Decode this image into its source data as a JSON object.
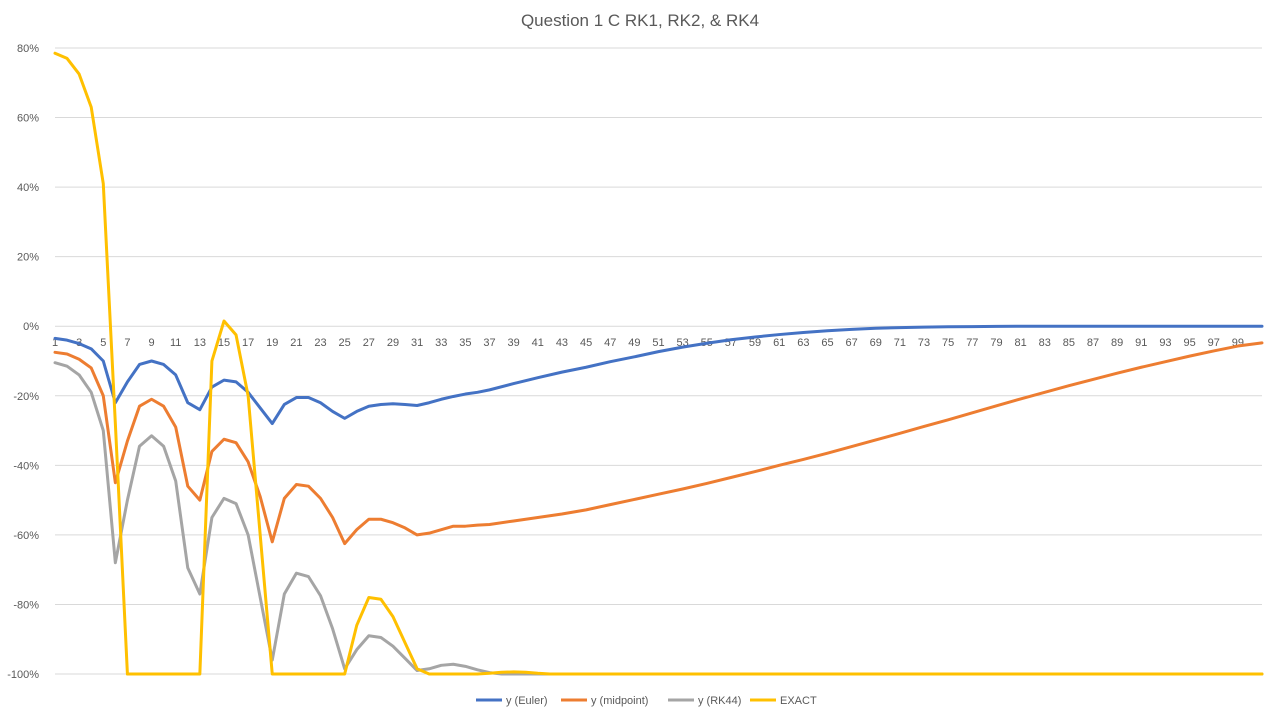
{
  "chart_data": {
    "type": "line",
    "title": "Question 1 C RK1, RK2, & RK4",
    "xlabel": "",
    "ylabel": "",
    "ylim": [
      -100,
      80
    ],
    "y_tick_labels": [
      "80%",
      "60%",
      "40%",
      "20%",
      "0%",
      "-20%",
      "-40%",
      "-60%",
      "-80%",
      "-100%"
    ],
    "x_tick_labels": [
      "1",
      "3",
      "5",
      "7",
      "9",
      "11",
      "13",
      "15",
      "17",
      "19",
      "21",
      "23",
      "25",
      "27",
      "29",
      "31",
      "33",
      "35",
      "37",
      "39",
      "41",
      "43",
      "45",
      "47",
      "49",
      "51",
      "53",
      "55",
      "57",
      "59",
      "61",
      "63",
      "65",
      "67",
      "69",
      "71",
      "73",
      "75",
      "77",
      "79",
      "81",
      "83",
      "85",
      "87",
      "89",
      "91",
      "93",
      "95",
      "97",
      "99"
    ],
    "x_count": 101,
    "grid": true,
    "legend_position": "bottom",
    "series": [
      {
        "name": "y (Euler)",
        "color": "#4472C4",
        "points": [
          [
            1,
            -3.5
          ],
          [
            2,
            -4
          ],
          [
            3,
            -5
          ],
          [
            4,
            -6.5
          ],
          [
            5,
            -10
          ],
          [
            6,
            -22
          ],
          [
            7,
            -16
          ],
          [
            8,
            -11
          ],
          [
            9,
            -10
          ],
          [
            10,
            -11
          ],
          [
            11,
            -14
          ],
          [
            12,
            -22
          ],
          [
            13,
            -24
          ],
          [
            14,
            -17.5
          ],
          [
            15,
            -15.5
          ],
          [
            16,
            -16
          ],
          [
            17,
            -19
          ],
          [
            18,
            -23.5
          ],
          [
            19,
            -28
          ],
          [
            20,
            -22.5
          ],
          [
            21,
            -20.5
          ],
          [
            22,
            -20.5
          ],
          [
            23,
            -22
          ],
          [
            24,
            -24.5
          ],
          [
            25,
            -26.5
          ],
          [
            26,
            -24.5
          ],
          [
            27,
            -23
          ],
          [
            28,
            -22.5
          ],
          [
            29,
            -22.3
          ],
          [
            30,
            -22.5
          ],
          [
            31,
            -22.8
          ],
          [
            32,
            -22
          ],
          [
            33,
            -21
          ],
          [
            34,
            -20.2
          ],
          [
            35,
            -19.5
          ],
          [
            36,
            -19
          ],
          [
            37,
            -18.3
          ],
          [
            39,
            -16.5
          ],
          [
            41,
            -14.8
          ],
          [
            43,
            -13.2
          ],
          [
            45,
            -11.8
          ],
          [
            47,
            -10.2
          ],
          [
            49,
            -8.8
          ],
          [
            51,
            -7.3
          ],
          [
            53,
            -6
          ],
          [
            55,
            -4.9
          ],
          [
            57,
            -3.9
          ],
          [
            59,
            -3.1
          ],
          [
            61,
            -2.4
          ],
          [
            63,
            -1.8
          ],
          [
            65,
            -1.3
          ],
          [
            67,
            -0.9
          ],
          [
            69,
            -0.6
          ],
          [
            71,
            -0.4
          ],
          [
            73,
            -0.25
          ],
          [
            75,
            -0.15
          ],
          [
            77,
            -0.1
          ],
          [
            79,
            -0.05
          ],
          [
            81,
            0
          ],
          [
            90,
            0
          ],
          [
            101,
            0
          ]
        ]
      },
      {
        "name": "y (midpoint)",
        "color": "#ED7D31",
        "points": [
          [
            1,
            -7.5
          ],
          [
            2,
            -8
          ],
          [
            3,
            -9.5
          ],
          [
            4,
            -12
          ],
          [
            5,
            -20
          ],
          [
            6,
            -45
          ],
          [
            7,
            -33
          ],
          [
            8,
            -23
          ],
          [
            9,
            -21
          ],
          [
            10,
            -23
          ],
          [
            11,
            -29
          ],
          [
            12,
            -46
          ],
          [
            13,
            -50
          ],
          [
            14,
            -36
          ],
          [
            15,
            -32.5
          ],
          [
            16,
            -33.5
          ],
          [
            17,
            -39
          ],
          [
            18,
            -49
          ],
          [
            19,
            -62
          ],
          [
            20,
            -49.5
          ],
          [
            21,
            -45.5
          ],
          [
            22,
            -46
          ],
          [
            23,
            -49.5
          ],
          [
            24,
            -55
          ],
          [
            25,
            -62.5
          ],
          [
            26,
            -58.5
          ],
          [
            27,
            -55.5
          ],
          [
            28,
            -55.5
          ],
          [
            29,
            -56.5
          ],
          [
            30,
            -58
          ],
          [
            31,
            -60
          ],
          [
            32,
            -59.5
          ],
          [
            33,
            -58.5
          ],
          [
            34,
            -57.5
          ],
          [
            35,
            -57.5
          ],
          [
            36,
            -57.2
          ],
          [
            37,
            -57
          ],
          [
            39,
            -56
          ],
          [
            41,
            -55
          ],
          [
            43,
            -54
          ],
          [
            45,
            -52.8
          ],
          [
            47,
            -51.3
          ],
          [
            49,
            -49.8
          ],
          [
            51,
            -48.3
          ],
          [
            53,
            -46.8
          ],
          [
            55,
            -45.2
          ],
          [
            57,
            -43.5
          ],
          [
            59,
            -41.8
          ],
          [
            61,
            -40
          ],
          [
            63,
            -38.3
          ],
          [
            65,
            -36.5
          ],
          [
            67,
            -34.6
          ],
          [
            69,
            -32.7
          ],
          [
            71,
            -30.8
          ],
          [
            73,
            -28.8
          ],
          [
            75,
            -26.9
          ],
          [
            77,
            -24.9
          ],
          [
            79,
            -22.9
          ],
          [
            81,
            -20.9
          ],
          [
            83,
            -19
          ],
          [
            85,
            -17.1
          ],
          [
            87,
            -15.3
          ],
          [
            89,
            -13.5
          ],
          [
            91,
            -11.8
          ],
          [
            93,
            -10.2
          ],
          [
            95,
            -8.6
          ],
          [
            97,
            -7.1
          ],
          [
            99,
            -5.7
          ],
          [
            101,
            -4.8
          ]
        ]
      },
      {
        "name": "y (RK44)",
        "color": "#A5A5A5",
        "points": [
          [
            1,
            -10.5
          ],
          [
            2,
            -11.5
          ],
          [
            3,
            -14
          ],
          [
            4,
            -19
          ],
          [
            5,
            -30
          ],
          [
            6,
            -68
          ],
          [
            7,
            -50
          ],
          [
            8,
            -34.5
          ],
          [
            9,
            -31.5
          ],
          [
            10,
            -34.5
          ],
          [
            11,
            -44.5
          ],
          [
            12,
            -69.5
          ],
          [
            13,
            -77
          ],
          [
            14,
            -55
          ],
          [
            15,
            -49.5
          ],
          [
            16,
            -51
          ],
          [
            17,
            -60
          ],
          [
            18,
            -78
          ],
          [
            19,
            -96
          ],
          [
            20,
            -77
          ],
          [
            21,
            -71
          ],
          [
            22,
            -72
          ],
          [
            23,
            -77.5
          ],
          [
            24,
            -87
          ],
          [
            25,
            -98.5
          ],
          [
            26,
            -93
          ],
          [
            27,
            -89
          ],
          [
            28,
            -89.5
          ],
          [
            29,
            -92
          ],
          [
            30,
            -95.5
          ],
          [
            31,
            -99
          ],
          [
            32,
            -98.5
          ],
          [
            33,
            -97.5
          ],
          [
            34,
            -97.2
          ],
          [
            35,
            -97.8
          ],
          [
            36,
            -98.8
          ],
          [
            37,
            -99.6
          ],
          [
            38,
            -100
          ],
          [
            101,
            -100
          ]
        ]
      },
      {
        "name": "EXACT",
        "color": "#FFC000",
        "points": [
          [
            1,
            78.5
          ],
          [
            2,
            77
          ],
          [
            3,
            72.5
          ],
          [
            4,
            63
          ],
          [
            5,
            41
          ],
          [
            6,
            -28
          ],
          [
            7,
            -100
          ],
          [
            13,
            -100
          ],
          [
            14,
            -10
          ],
          [
            15,
            1.5
          ],
          [
            16,
            -2.5
          ],
          [
            17,
            -20
          ],
          [
            18,
            -60
          ],
          [
            19,
            -100
          ],
          [
            25,
            -100
          ],
          [
            26,
            -86
          ],
          [
            27,
            -78
          ],
          [
            28,
            -78.5
          ],
          [
            29,
            -83.5
          ],
          [
            30,
            -91
          ],
          [
            31,
            -98.5
          ],
          [
            32,
            -100
          ],
          [
            36,
            -100
          ],
          [
            37,
            -99.8
          ],
          [
            38,
            -99.5
          ],
          [
            39,
            -99.4
          ],
          [
            40,
            -99.5
          ],
          [
            41,
            -99.8
          ],
          [
            42,
            -100
          ],
          [
            101,
            -100
          ]
        ]
      }
    ]
  }
}
